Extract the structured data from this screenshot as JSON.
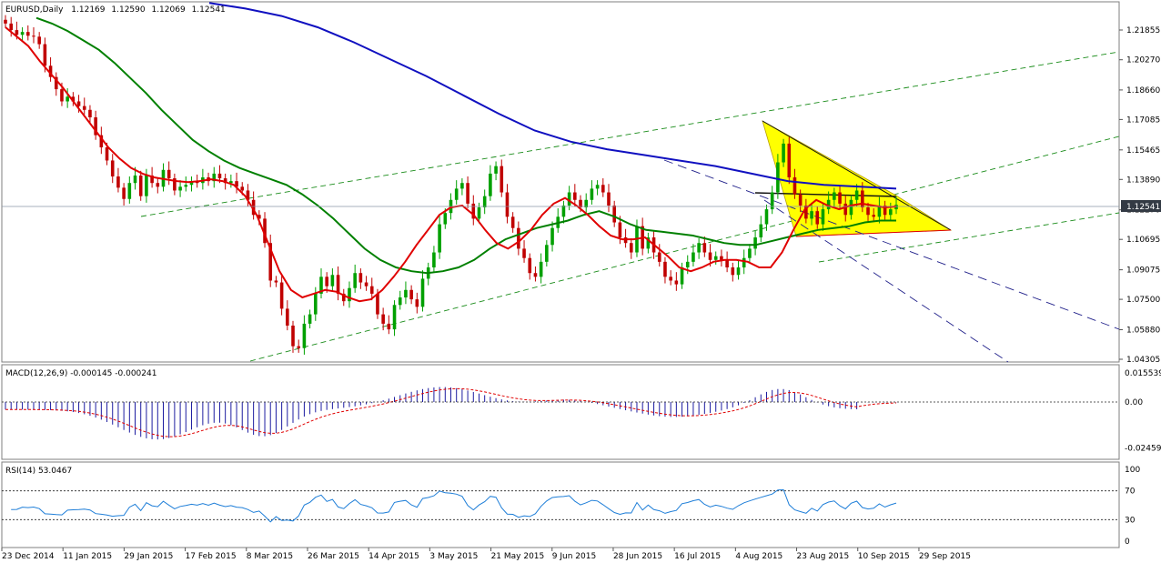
{
  "header": {
    "symbol": "EURUSD,Daily",
    "open": "1.12169",
    "high": "1.12590",
    "low": "1.12069",
    "close": "1.12541"
  },
  "colors": {
    "candle_bull": "#00a000",
    "candle_bear": "#c00000",
    "ma_fast": "#e00000",
    "ma_mid": "#008000",
    "ma_slow": "#1010c0",
    "channel": "#1a8c1a",
    "triangle_fill": "#ffff00",
    "trend_dashed": "#20208a",
    "macd_hist": "#1c1ca0",
    "macd_signal": "#e00000",
    "rsi_line": "#1e7ed8",
    "price_tag_bg": "#333a44"
  },
  "price_panel": {
    "y_ticks": [
      "1.21855",
      "1.20270",
      "1.18660",
      "1.17085",
      "1.15465",
      "1.13890",
      "1.12270",
      "1.10695",
      "1.09075",
      "1.07500",
      "1.05880",
      "1.04305"
    ],
    "current_price": "1.12541"
  },
  "macd_panel": {
    "label": "MACD(12,26,9) -0.000145 -0.000241",
    "y_ticks": [
      "0.015539",
      "0.00",
      "-0.024594"
    ]
  },
  "rsi_panel": {
    "label": "RSI(14) 53.0467",
    "y_ticks": [
      "100",
      "70",
      "30",
      "0"
    ]
  },
  "x_axis": {
    "labels": [
      "23 Dec 2014",
      "11 Jan 2015",
      "29 Jan 2015",
      "17 Feb 2015",
      "8 Mar 2015",
      "26 Mar 2015",
      "14 Apr 2015",
      "3 May 2015",
      "21 May 2015",
      "9 Jun 2015",
      "28 Jun 2015",
      "16 Jul 2015",
      "4 Aug 2015",
      "23 Aug 2015",
      "10 Sep 2015",
      "29 Sep 2015"
    ]
  },
  "chart_data": {
    "type": "candlestick",
    "symbol": "EURUSD",
    "timeframe": "Daily",
    "dates_first": "23 Dec 2014",
    "dates_last": "2 Oct 2015",
    "close_series": [
      1.222,
      1.2185,
      1.216,
      1.2175,
      1.2155,
      1.215,
      1.211,
      1.1995,
      1.1935,
      1.187,
      1.1805,
      1.183,
      1.1805,
      1.178,
      1.176,
      1.172,
      1.1625,
      1.156,
      1.149,
      1.1405,
      1.1345,
      1.1285,
      1.137,
      1.141,
      1.13,
      1.141,
      1.137,
      1.135,
      1.144,
      1.1395,
      1.133,
      1.135,
      1.136,
      1.138,
      1.137,
      1.14,
      1.138,
      1.142,
      1.1395,
      1.137,
      1.138,
      1.135,
      1.133,
      1.128,
      1.12,
      1.118,
      1.105,
      1.085,
      1.084,
      1.07,
      1.061,
      1.05,
      1.049,
      1.062,
      1.067,
      1.078,
      1.087,
      1.082,
      1.088,
      1.078,
      1.074,
      1.081,
      1.089,
      1.084,
      1.082,
      1.078,
      1.067,
      1.062,
      1.059,
      1.072,
      1.076,
      1.08,
      1.075,
      1.071,
      1.086,
      1.092,
      1.1,
      1.115,
      1.121,
      1.128,
      1.134,
      1.137,
      1.126,
      1.118,
      1.124,
      1.13,
      1.142,
      1.146,
      1.132,
      1.119,
      1.113,
      1.102,
      1.097,
      1.089,
      1.087,
      1.095,
      1.104,
      1.113,
      1.119,
      1.125,
      1.132,
      1.128,
      1.124,
      1.128,
      1.134,
      1.136,
      1.132,
      1.125,
      1.116,
      1.108,
      1.105,
      1.1,
      1.114,
      1.102,
      1.108,
      1.1,
      1.095,
      1.087,
      1.085,
      1.083,
      1.092,
      1.095,
      1.1,
      1.105,
      1.1,
      1.096,
      1.098,
      1.096,
      1.092,
      1.088,
      1.092,
      1.097,
      1.102,
      1.108,
      1.115,
      1.123,
      1.132,
      1.148,
      1.158,
      1.14,
      1.131,
      1.125,
      1.118,
      1.122,
      1.115,
      1.123,
      1.128,
      1.132,
      1.126,
      1.12,
      1.128,
      1.133,
      1.124,
      1.12,
      1.119,
      1.125,
      1.12,
      1.123,
      1.1254
    ],
    "ma_fast_series": [
      1.22,
      1.215,
      1.21,
      1.202,
      1.195,
      1.188,
      1.18,
      1.172,
      1.164,
      1.156,
      1.15,
      1.145,
      1.142,
      1.14,
      1.139,
      1.138,
      1.1375,
      1.138,
      1.139,
      1.138,
      1.136,
      1.13,
      1.12,
      1.105,
      1.09,
      1.08,
      1.076,
      1.078,
      1.08,
      1.079,
      1.076,
      1.074,
      1.075,
      1.08,
      1.087,
      1.095,
      1.104,
      1.112,
      1.12,
      1.124,
      1.125,
      1.12,
      1.112,
      1.105,
      1.102,
      1.106,
      1.112,
      1.12,
      1.126,
      1.129,
      1.125,
      1.12,
      1.114,
      1.109,
      1.107,
      1.107,
      1.108,
      1.103,
      1.098,
      1.092,
      1.09,
      1.092,
      1.095,
      1.096,
      1.096,
      1.095,
      1.092,
      1.092,
      1.1,
      1.112,
      1.123,
      1.128,
      1.125,
      1.123,
      1.125,
      1.126,
      1.125,
      1.124,
      1.1245
    ],
    "ma_mid_series": [
      1.225,
      1.222,
      1.218,
      1.213,
      1.208,
      1.201,
      1.193,
      1.185,
      1.176,
      1.168,
      1.16,
      1.154,
      1.149,
      1.145,
      1.142,
      1.139,
      1.136,
      1.131,
      1.125,
      1.118,
      1.11,
      1.102,
      1.096,
      1.092,
      1.09,
      1.089,
      1.09,
      1.092,
      1.096,
      1.102,
      1.107,
      1.11,
      1.113,
      1.115,
      1.117,
      1.12,
      1.122,
      1.119,
      1.115,
      1.112,
      1.111,
      1.11,
      1.109,
      1.107,
      1.105,
      1.104,
      1.104,
      1.106,
      1.108,
      1.11,
      1.112,
      1.113,
      1.114,
      1.116,
      1.117,
      1.117
    ],
    "ma_slow_series": [
      1.233,
      1.23,
      1.226,
      1.22,
      1.212,
      1.203,
      1.194,
      1.184,
      1.174,
      1.165,
      1.159,
      1.155,
      1.152,
      1.149,
      1.146,
      1.142,
      1.138,
      1.136,
      1.135,
      1.134
    ],
    "macd_last": -0.000145,
    "macd_signal_last": -0.000241,
    "rsi_last": 53.0467,
    "rsi_levels": [
      70,
      30
    ],
    "price_range": [
      1.04305,
      1.21855
    ]
  }
}
